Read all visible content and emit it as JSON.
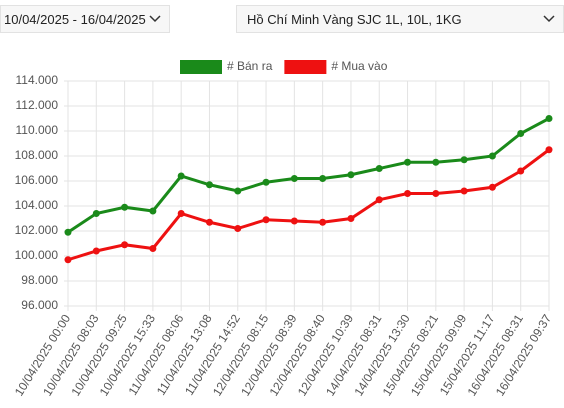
{
  "ui": {
    "date_range": "10/04/2025 - 16/04/2025",
    "product": "Hồ Chí Minh Vàng SJC 1L, 10L, 1KG"
  },
  "chart_data": {
    "type": "line",
    "categories": [
      "10/04/2025 00:00",
      "10/04/2025 08:03",
      "10/04/2025 09:25",
      "10/04/2025 15:33",
      "11/04/2025 08:06",
      "11/04/2025 13:08",
      "11/04/2025 14:52",
      "12/04/2025 08:15",
      "12/04/2025 08:39",
      "12/04/2025 08:40",
      "12/04/2025 10:39",
      "14/04/2025 08:31",
      "14/04/2025 13:30",
      "15/04/2025 08:21",
      "15/04/2025 09:09",
      "15/04/2025 11:17",
      "16/04/2025 08:31",
      "16/04/2025 09:37"
    ],
    "series": [
      {
        "name": "# Bán ra",
        "color": "#1a8a1a",
        "values": [
          101900,
          103400,
          103900,
          103600,
          106400,
          105700,
          105200,
          105900,
          106200,
          106200,
          106500,
          107000,
          107500,
          107500,
          107700,
          108000,
          109800,
          111000
        ]
      },
      {
        "name": "# Mua vào",
        "color": "#ee1111",
        "values": [
          99700,
          100400,
          100900,
          100600,
          103400,
          102700,
          102200,
          102900,
          102800,
          102700,
          103000,
          104500,
          105000,
          105000,
          105200,
          105500,
          106800,
          108500
        ]
      }
    ],
    "ylim": [
      96000,
      114000
    ],
    "yticks": [
      {
        "value": 96000,
        "label": "96.000"
      },
      {
        "value": 98000,
        "label": "98.000"
      },
      {
        "value": 100000,
        "label": "100.000"
      },
      {
        "value": 102000,
        "label": "102.000"
      },
      {
        "value": 104000,
        "label": "104.000"
      },
      {
        "value": 106000,
        "label": "106.000"
      },
      {
        "value": 108000,
        "label": "108.000"
      },
      {
        "value": 110000,
        "label": "110.000"
      },
      {
        "value": 112000,
        "label": "112.000"
      },
      {
        "value": 114000,
        "label": "114.000"
      }
    ],
    "grid": true
  }
}
